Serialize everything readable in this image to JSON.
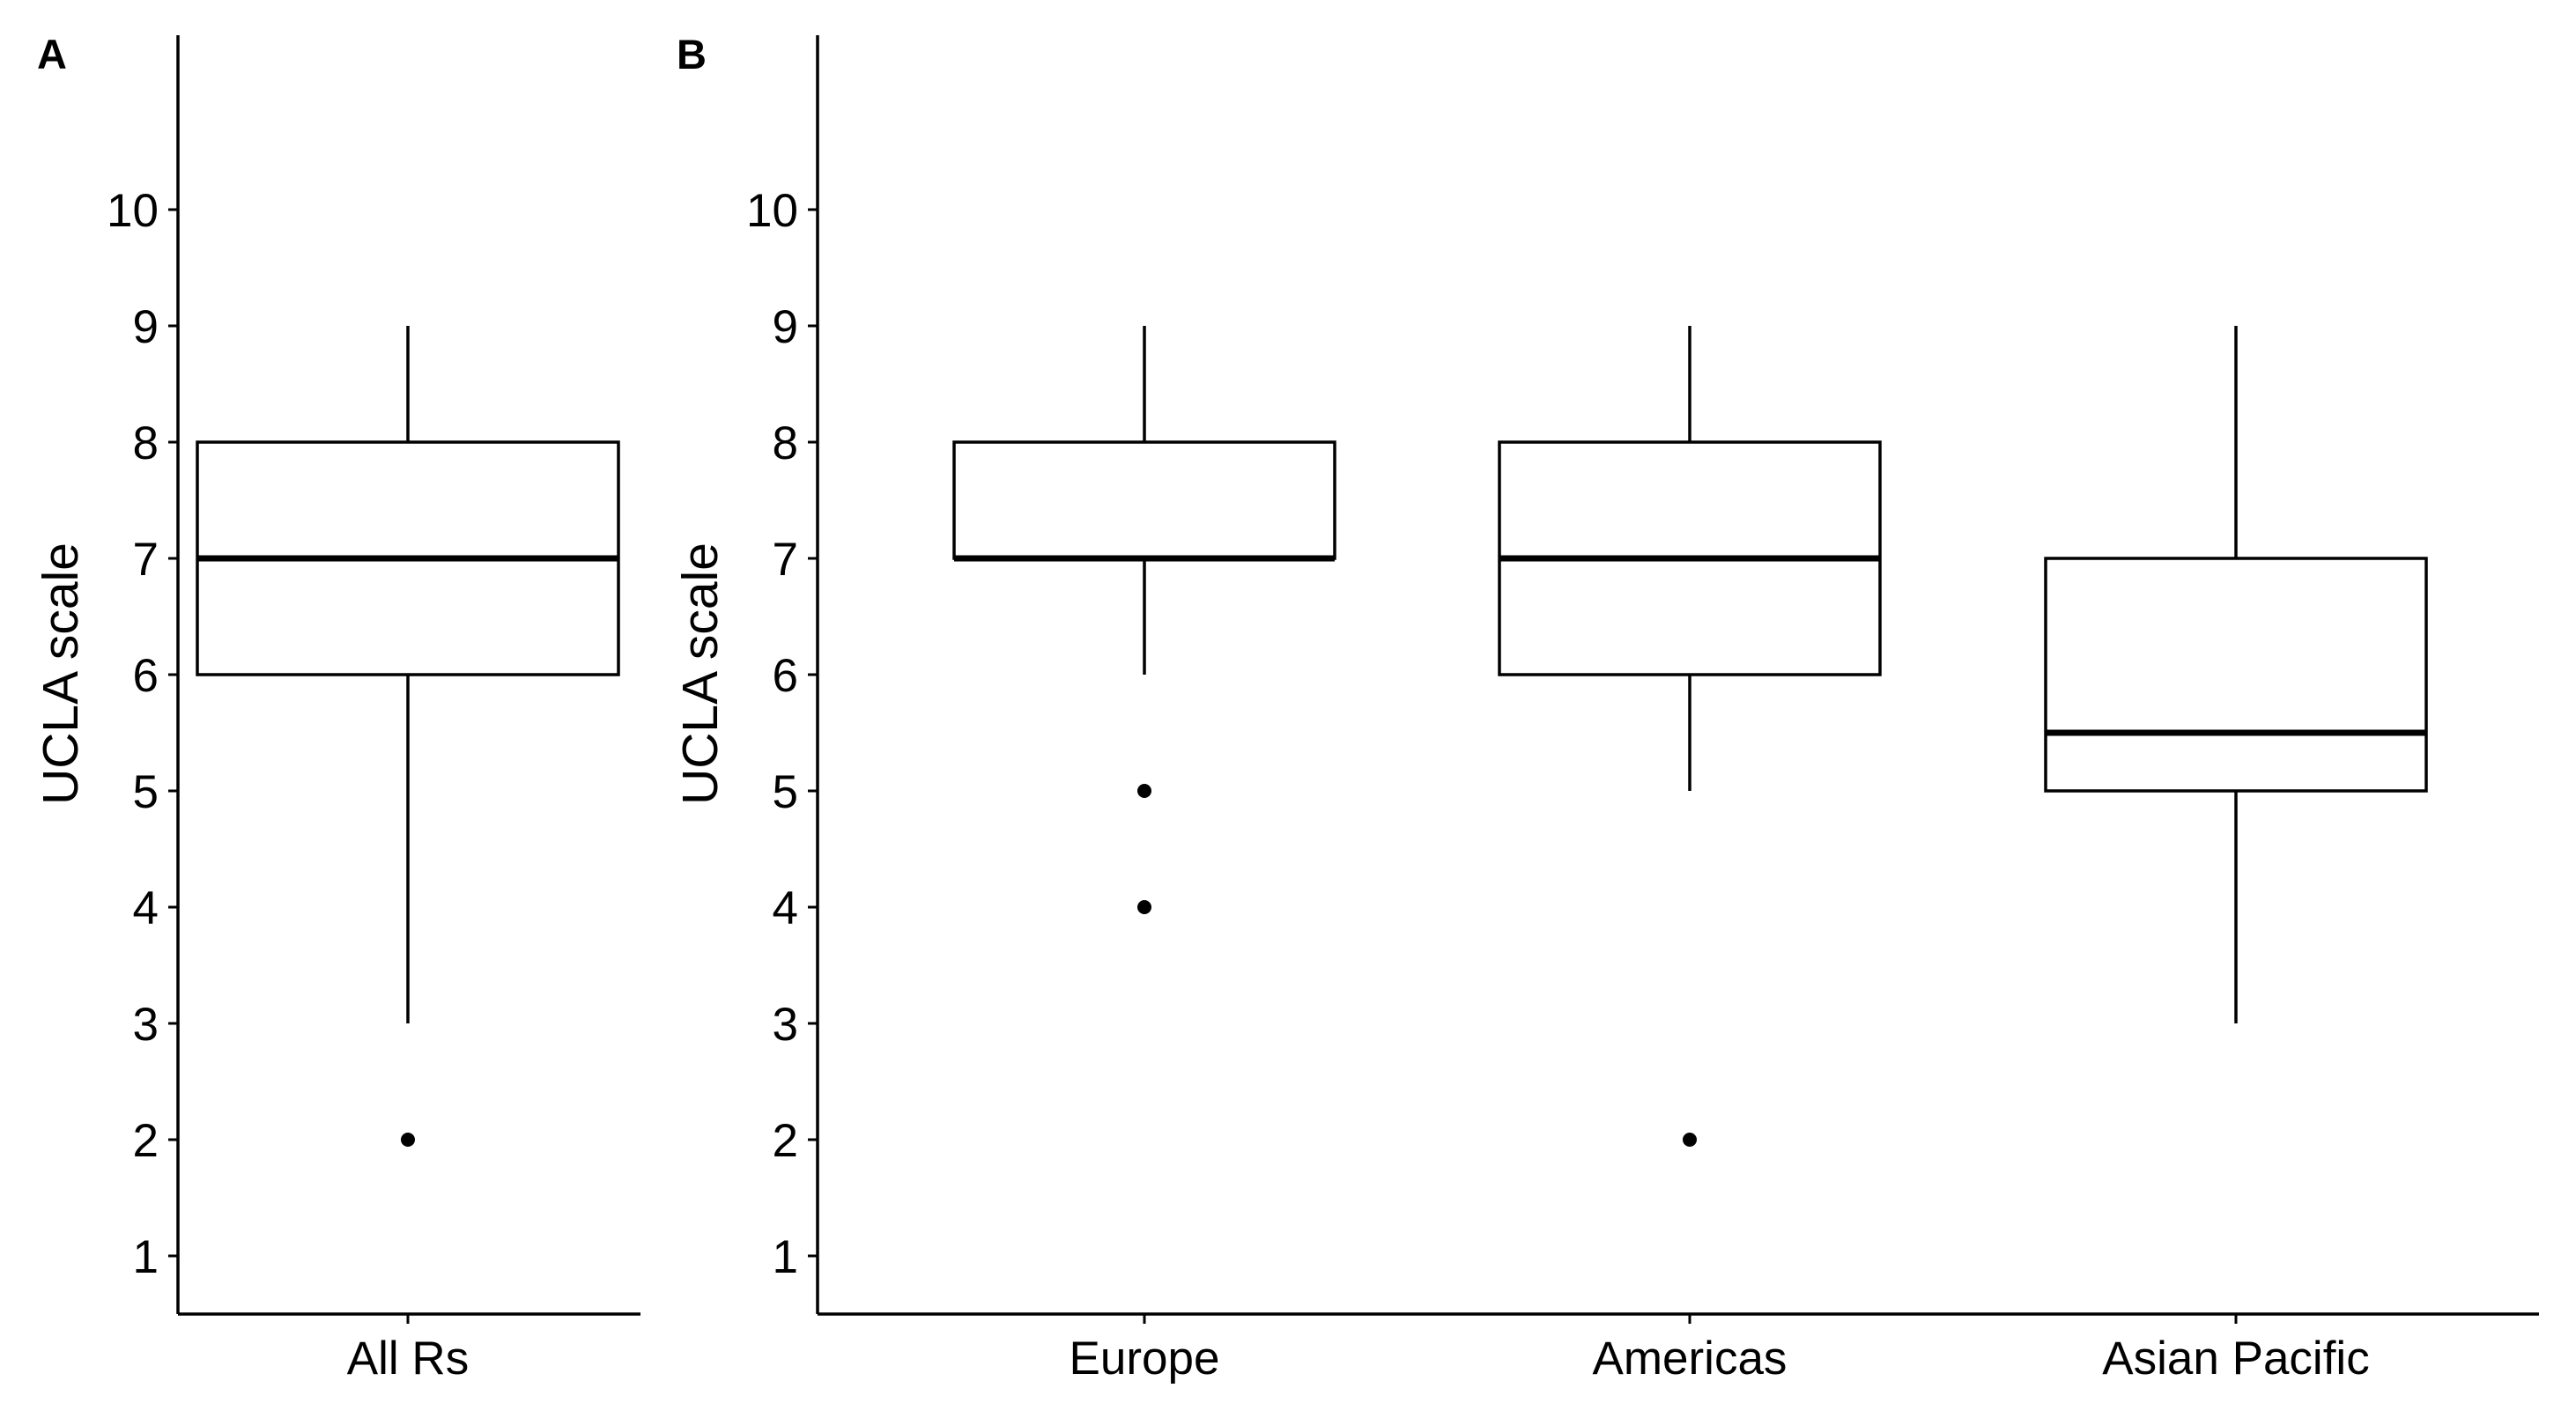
{
  "chart_data": [
    {
      "type": "box",
      "panel": "A",
      "ylabel": "UCLA scale",
      "ylim": [
        0.5,
        11.5
      ],
      "yticks": [
        1,
        2,
        3,
        4,
        5,
        6,
        7,
        8,
        9,
        10
      ],
      "categories": [
        "All Rs"
      ],
      "boxes": [
        {
          "category": "All Rs",
          "whisker_low": 3,
          "q1": 6,
          "median": 7,
          "q3": 8,
          "whisker_high": 9,
          "outliers": [
            2
          ]
        }
      ]
    },
    {
      "type": "box",
      "panel": "B",
      "ylabel": "UCLA scale",
      "ylim": [
        0.5,
        11.5
      ],
      "yticks": [
        1,
        2,
        3,
        4,
        5,
        6,
        7,
        8,
        9,
        10
      ],
      "categories": [
        "Europe",
        "Americas",
        "Asian Pacific"
      ],
      "boxes": [
        {
          "category": "Europe",
          "whisker_low": 6,
          "q1": 7,
          "median": 7,
          "q3": 8,
          "whisker_high": 9,
          "outliers": [
            5,
            4
          ]
        },
        {
          "category": "Americas",
          "whisker_low": 5,
          "q1": 6,
          "median": 7,
          "q3": 8,
          "whisker_high": 9,
          "outliers": [
            2
          ]
        },
        {
          "category": "Asian Pacific",
          "whisker_low": 3,
          "q1": 5,
          "median": 5.5,
          "q3": 7,
          "whisker_high": 9,
          "outliers": []
        }
      ]
    }
  ]
}
